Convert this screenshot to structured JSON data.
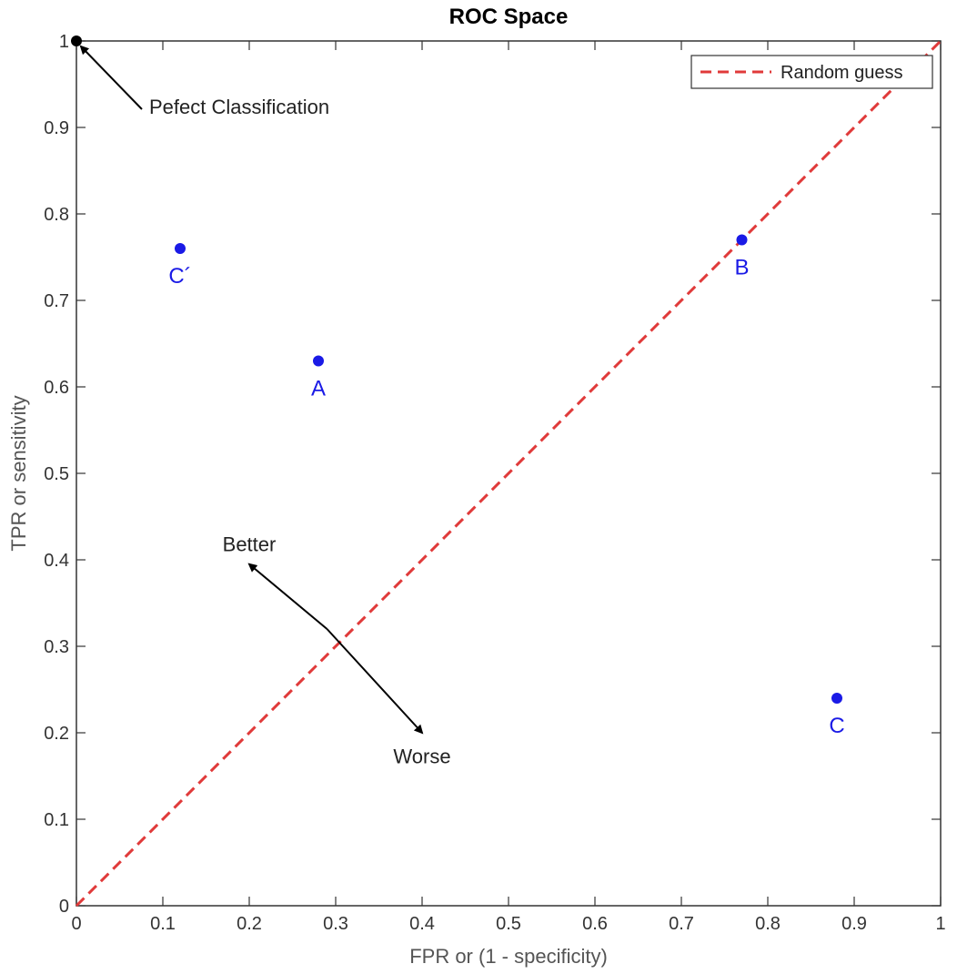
{
  "chart_data": {
    "type": "scatter",
    "title": "ROC Space",
    "xlabel": "FPR or (1 - specificity)",
    "ylabel": "TPR or sensitivity",
    "xlim": [
      0,
      1
    ],
    "ylim": [
      0,
      1
    ],
    "xticks": [
      "0",
      "0.1",
      "0.2",
      "0.3",
      "0.4",
      "0.5",
      "0.6",
      "0.7",
      "0.8",
      "0.9",
      "1"
    ],
    "yticks": [
      "0",
      "0.1",
      "0.2",
      "0.3",
      "0.4",
      "0.5",
      "0.6",
      "0.7",
      "0.8",
      "0.9",
      "1"
    ],
    "grid": false,
    "legend_position": "top-right",
    "reference_line": {
      "name": "Random guess",
      "from": [
        0,
        0
      ],
      "to": [
        1,
        1
      ],
      "style": "dashed",
      "color": "#e03a3a"
    },
    "points": [
      {
        "label": "A",
        "x": 0.28,
        "y": 0.63
      },
      {
        "label": "B",
        "x": 0.77,
        "y": 0.77
      },
      {
        "label": "C",
        "x": 0.88,
        "y": 0.24
      },
      {
        "label": "C´",
        "x": 0.12,
        "y": 0.76
      }
    ],
    "point_color": "#1a1ae6",
    "perfect_point": {
      "x": 0,
      "y": 1,
      "color": "#000000"
    },
    "annotations": [
      {
        "text": "Pefect Classification",
        "points_to": [
          0,
          1
        ]
      },
      {
        "text": "Better",
        "direction": "up-left"
      },
      {
        "text": "Worse",
        "direction": "down-right"
      }
    ]
  }
}
